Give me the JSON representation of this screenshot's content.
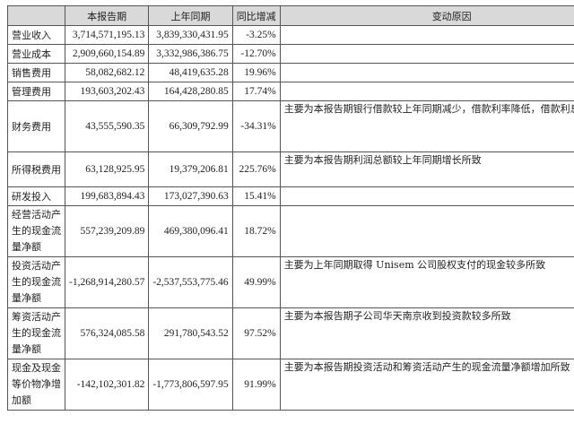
{
  "table": {
    "headers": [
      "",
      "本报告期",
      "上年同期",
      "同比增减",
      "变动原因"
    ],
    "rows": [
      {
        "item": "营业收入",
        "current": "3,714,571,195.13",
        "prior": "3,839,330,431.95",
        "change": "-3.25%",
        "reason": ""
      },
      {
        "item": "营业成本",
        "current": "2,909,660,154.89",
        "prior": "3,332,986,386.75",
        "change": "-12.70%",
        "reason": ""
      },
      {
        "item": "销售费用",
        "current": "58,082,682.12",
        "prior": "48,419,635.28",
        "change": "19.96%",
        "reason": ""
      },
      {
        "item": "管理费用",
        "current": "193,603,202.43",
        "prior": "164,428,280.85",
        "change": "17.74%",
        "reason": ""
      },
      {
        "item": "财务费用",
        "current": "43,555,590.35",
        "prior": "66,309,792.99",
        "change": "-34.31%",
        "reason": "主要为本报告期银行借款较上年同期减少，借款利率降低，借款利息减少所致"
      },
      {
        "item": "所得税费用",
        "current": "63,128,925.95",
        "prior": "19,379,206.81",
        "change": "225.76%",
        "reason": "主要为本报告期利润总额较上年同期增长所致"
      },
      {
        "item": "研发投入",
        "current": "199,683,894.43",
        "prior": "173,027,390.63",
        "change": "15.41%",
        "reason": ""
      },
      {
        "item": "经营活动产生的现金流量净额",
        "current": "557,239,209.89",
        "prior": "469,380,096.41",
        "change": "18.72%",
        "reason": ""
      },
      {
        "item": "投资活动产生的现金流量净额",
        "current": "-1,268,914,280.57",
        "prior": "-2,537,553,775.46",
        "change": "49.99%",
        "reason": "主要为上年同期取得 Unisem 公司股权支付的现金较多所致"
      },
      {
        "item": "筹资活动产生的现金流量净额",
        "current": "576,324,085.58",
        "prior": "291,780,543.52",
        "change": "97.52%",
        "reason": "主要为本报告期子公司华天南京收到投资款较多所致"
      },
      {
        "item": "现金及现金等价物净增加额",
        "current": "-142,102,301.82",
        "prior": "-1,773,806,597.95",
        "change": "91.99%",
        "reason": "主要为本报告期投资活动和筹资活动产生的现金流量净额增加所致"
      }
    ]
  }
}
